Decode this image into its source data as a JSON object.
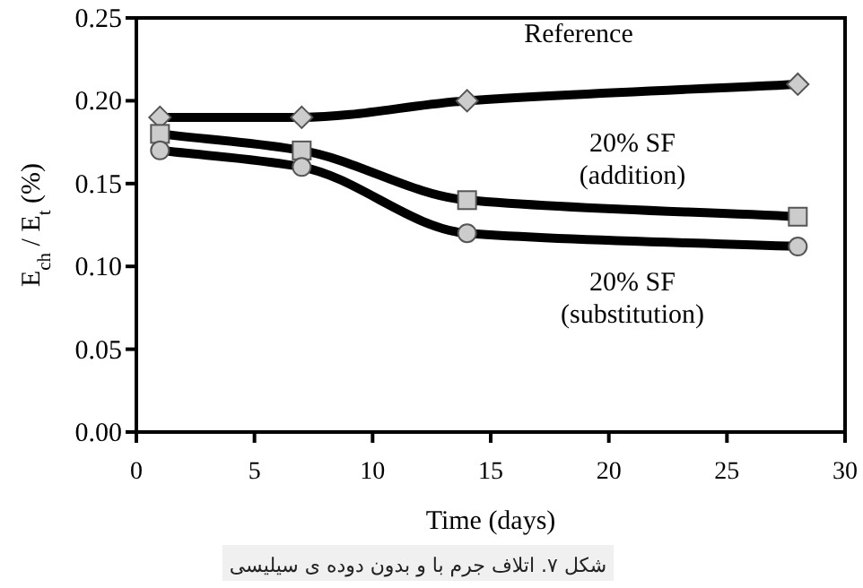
{
  "chart_data": {
    "type": "line",
    "xlabel": "Time (days)",
    "ylabel": "E$_{ch}$ / E$_{t}$ (%)",
    "xlim": [
      0,
      30
    ],
    "xticks": [
      0,
      5,
      10,
      15,
      20,
      25,
      30
    ],
    "ylim": [
      0,
      0.25
    ],
    "yticks": [
      {
        "value": 0,
        "label": "0.00"
      },
      {
        "value": 0.05,
        "label": "0.05"
      },
      {
        "value": 0.1,
        "label": "0.10"
      },
      {
        "value": 0.15,
        "label": "0.15"
      },
      {
        "value": 0.2,
        "label": "0.20"
      },
      {
        "value": 0.25,
        "label": "0.25"
      }
    ],
    "grid": false,
    "series": [
      {
        "name": "Reference",
        "color": "#000000",
        "marker": "diamond",
        "x": [
          1,
          7,
          14,
          28
        ],
        "values": [
          0.19,
          0.19,
          0.2,
          0.21
        ]
      },
      {
        "name": "20% SF\n(addition)",
        "color": "#000000",
        "marker": "square",
        "x": [
          1,
          7,
          14,
          28
        ],
        "values": [
          0.18,
          0.17,
          0.14,
          0.13
        ]
      },
      {
        "name": "20% SF\n(substitution)",
        "color": "#000000",
        "marker": "circle",
        "x": [
          1,
          7,
          14,
          28
        ],
        "values": [
          0.17,
          0.16,
          0.12,
          0.112
        ]
      }
    ],
    "annotations": [
      "شکل ۷. اتلاف جرم با و بدون دوده ی سیلیسی"
    ]
  }
}
